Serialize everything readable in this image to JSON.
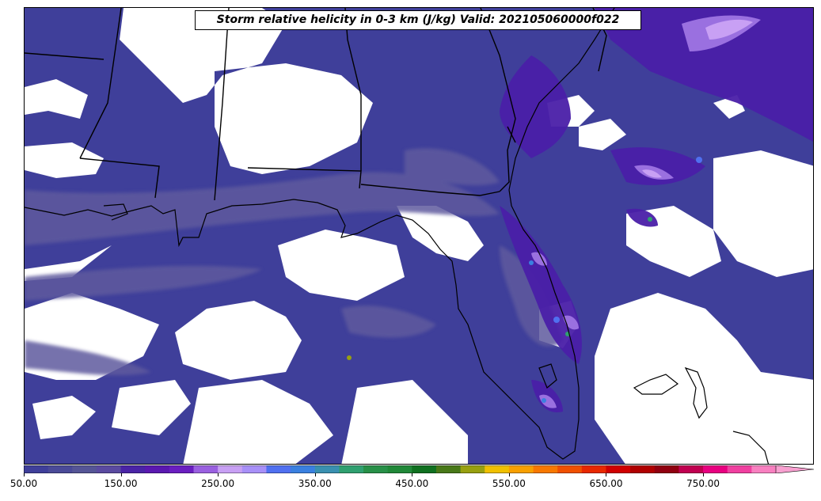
{
  "title": "Storm relative helicity in 0-3 km (J/kg) Valid: 202105060000f022",
  "colorbar": {
    "levels": [
      50,
      75,
      100,
      125,
      150,
      175,
      200,
      225,
      250,
      275,
      300,
      325,
      350,
      375,
      400,
      425,
      450,
      475,
      500,
      525,
      550,
      575,
      600,
      625,
      650,
      675,
      700,
      725,
      750,
      775,
      800
    ],
    "colors": [
      "#3f3f9a",
      "#4a4a98",
      "#555596",
      "#5a4aa0",
      "#4a24a6",
      "#5a18b0",
      "#6a1ec0",
      "#9a60e0",
      "#c8a0f4",
      "#a890f8",
      "#5070f0",
      "#3a80e0",
      "#3a90b0",
      "#30a070",
      "#289048",
      "#208838",
      "#107020",
      "#487818",
      "#98a010",
      "#f0c000",
      "#f8a000",
      "#f87800",
      "#f05000",
      "#e82800",
      "#d00000",
      "#b00000",
      "#900010",
      "#c00050",
      "#e80080",
      "#f040a0",
      "#f880c0"
    ],
    "extend_color": "#f8a0d0",
    "tick_labels": [
      "50.00",
      "150.00",
      "250.00",
      "350.00",
      "450.00",
      "550.00",
      "650.00",
      "750.00"
    ]
  },
  "map": {
    "region": "Southeastern United States",
    "features": [
      "state-borders",
      "coastlines"
    ]
  },
  "colors": {
    "outline": "#000000",
    "background": "#ffffff"
  }
}
